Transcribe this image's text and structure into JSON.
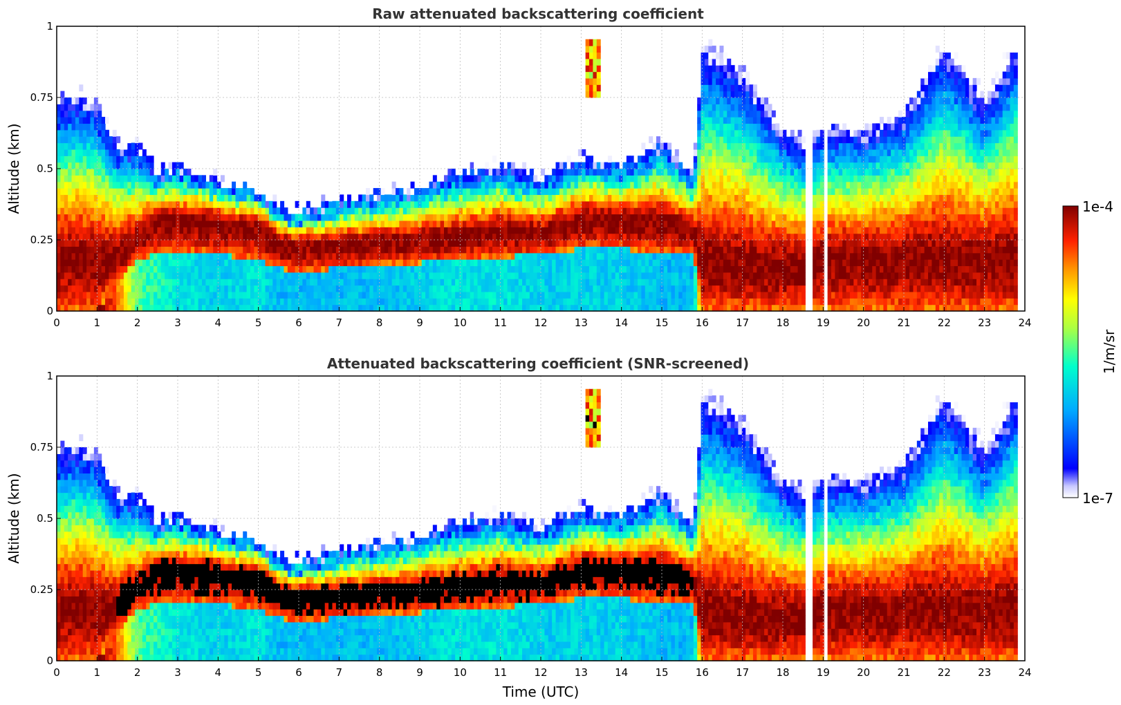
{
  "chart_data": [
    {
      "type": "heatmap",
      "title": "Raw attenuated backscattering coefficient",
      "xlabel": "",
      "ylabel": "Altitude (km)",
      "xlim": [
        0,
        24
      ],
      "ylim": [
        0,
        1
      ],
      "x_ticks": [
        "0",
        "1",
        "2",
        "3",
        "4",
        "5",
        "6",
        "7",
        "8",
        "9",
        "10",
        "11",
        "12",
        "13",
        "14",
        "15",
        "16",
        "17",
        "18",
        "19",
        "20",
        "21",
        "22",
        "23",
        "24"
      ],
      "y_ticks": [
        "0",
        "0.25",
        "0.5",
        "0.75",
        "1"
      ],
      "grid": true,
      "screened": false
    },
    {
      "type": "heatmap",
      "title": "Attenuated backscattering coefficient (SNR-screened)",
      "xlabel": "Time (UTC)",
      "ylabel": "Altitude (km)",
      "xlim": [
        0,
        24
      ],
      "ylim": [
        0,
        1
      ],
      "x_ticks": [
        "0",
        "1",
        "2",
        "3",
        "4",
        "5",
        "6",
        "7",
        "8",
        "9",
        "10",
        "11",
        "12",
        "13",
        "14",
        "15",
        "16",
        "17",
        "18",
        "19",
        "20",
        "21",
        "22",
        "23",
        "24"
      ],
      "y_ticks": [
        "0",
        "0.25",
        "0.5",
        "0.75",
        "1"
      ],
      "grid": true,
      "screened": true
    }
  ],
  "colorbar": {
    "label": "1/m/sr",
    "max_label": "1e-4",
    "min_label": "1e-7",
    "scale": "log",
    "colormap": "jet"
  },
  "profile": {
    "hours": [
      0,
      0.5,
      1,
      1.5,
      2,
      2.5,
      3,
      4,
      5,
      5.5,
      6,
      7,
      8,
      9,
      10,
      11,
      12,
      13,
      14,
      15,
      15.8,
      16,
      17,
      18,
      18.6,
      19,
      20,
      21,
      22,
      23,
      23.8
    ],
    "layer_peak_km": [
      0.2,
      0.2,
      0.2,
      0.2,
      0.25,
      0.32,
      0.33,
      0.32,
      0.3,
      0.25,
      0.24,
      0.24,
      0.25,
      0.26,
      0.27,
      0.29,
      0.28,
      0.33,
      0.33,
      0.33,
      0.28,
      0.18,
      0.18,
      0.17,
      0.17,
      0.2,
      0.2,
      0.2,
      0.2,
      0.2,
      0.2
    ],
    "layer_top_km": [
      0.75,
      0.78,
      0.74,
      0.6,
      0.6,
      0.5,
      0.52,
      0.46,
      0.44,
      0.37,
      0.35,
      0.4,
      0.42,
      0.45,
      0.5,
      0.52,
      0.48,
      0.55,
      0.52,
      0.6,
      0.5,
      0.95,
      0.85,
      0.65,
      0.6,
      0.65,
      0.65,
      0.7,
      0.95,
      0.75,
      0.95
    ],
    "layer_base_km": [
      0,
      0,
      0,
      0.1,
      0.18,
      0.2,
      0.2,
      0.2,
      0.18,
      0.15,
      0.14,
      0.15,
      0.16,
      0.17,
      0.18,
      0.19,
      0.2,
      0.22,
      0.22,
      0.2,
      0.2,
      0,
      0,
      0,
      0,
      0,
      0,
      0,
      0,
      0,
      0
    ],
    "bg_log_exponent": [
      -4,
      -4,
      -4,
      -4.5,
      -5.5,
      -5.6,
      -5.8,
      -5.9,
      -5.8,
      -6.0,
      -6.0,
      -6.0,
      -6.0,
      -5.9,
      -5.8,
      -5.8,
      -5.9,
      -5.9,
      -5.9,
      -6.0,
      -6.0,
      -4.1,
      -4.1,
      -4.1,
      -4.1,
      -4.1,
      -4.1,
      -4.1,
      -4.1,
      -4.1,
      -4.1
    ],
    "data_end_hour": 23.8,
    "gap_hours": [
      [
        18.55,
        18.75
      ],
      [
        19.0,
        19.1
      ]
    ],
    "isolated_cloud": {
      "hour_range": [
        13.1,
        13.5
      ],
      "alt_range_km": [
        0.75,
        0.95
      ]
    }
  }
}
